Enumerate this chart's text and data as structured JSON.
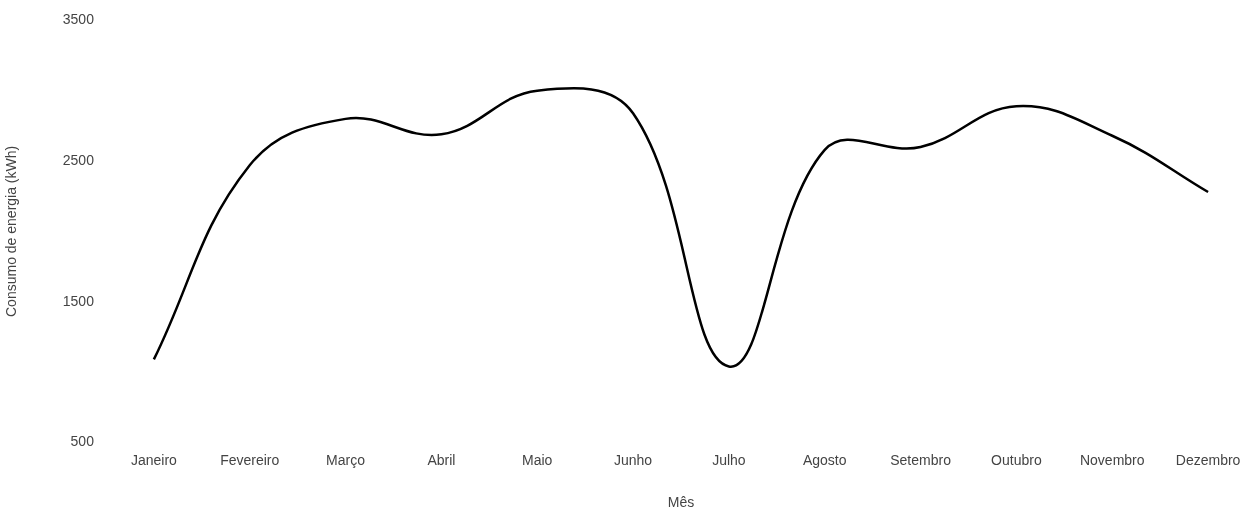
{
  "chart_data": {
    "type": "line",
    "xlabel": "Mês",
    "ylabel": "Consumo de energia (kWh)",
    "categories": [
      "Janeiro",
      "Fevereiro",
      "Março",
      "Abril",
      "Maio",
      "Junho",
      "Julho",
      "Agosto",
      "Setembro",
      "Outubro",
      "Novembro",
      "Dezembro"
    ],
    "series": [
      {
        "color": "#000000",
        "values": [
          1090,
          2470,
          2800,
          2690,
          3000,
          2840,
          1040,
          2580,
          2600,
          2890,
          2680,
          2280
        ]
      }
    ],
    "ylim": [
      500,
      3500
    ],
    "yticks": [
      500,
      1500,
      2500,
      3500
    ],
    "grid": false,
    "legend": false,
    "marker": "none",
    "line_style": "solid"
  }
}
